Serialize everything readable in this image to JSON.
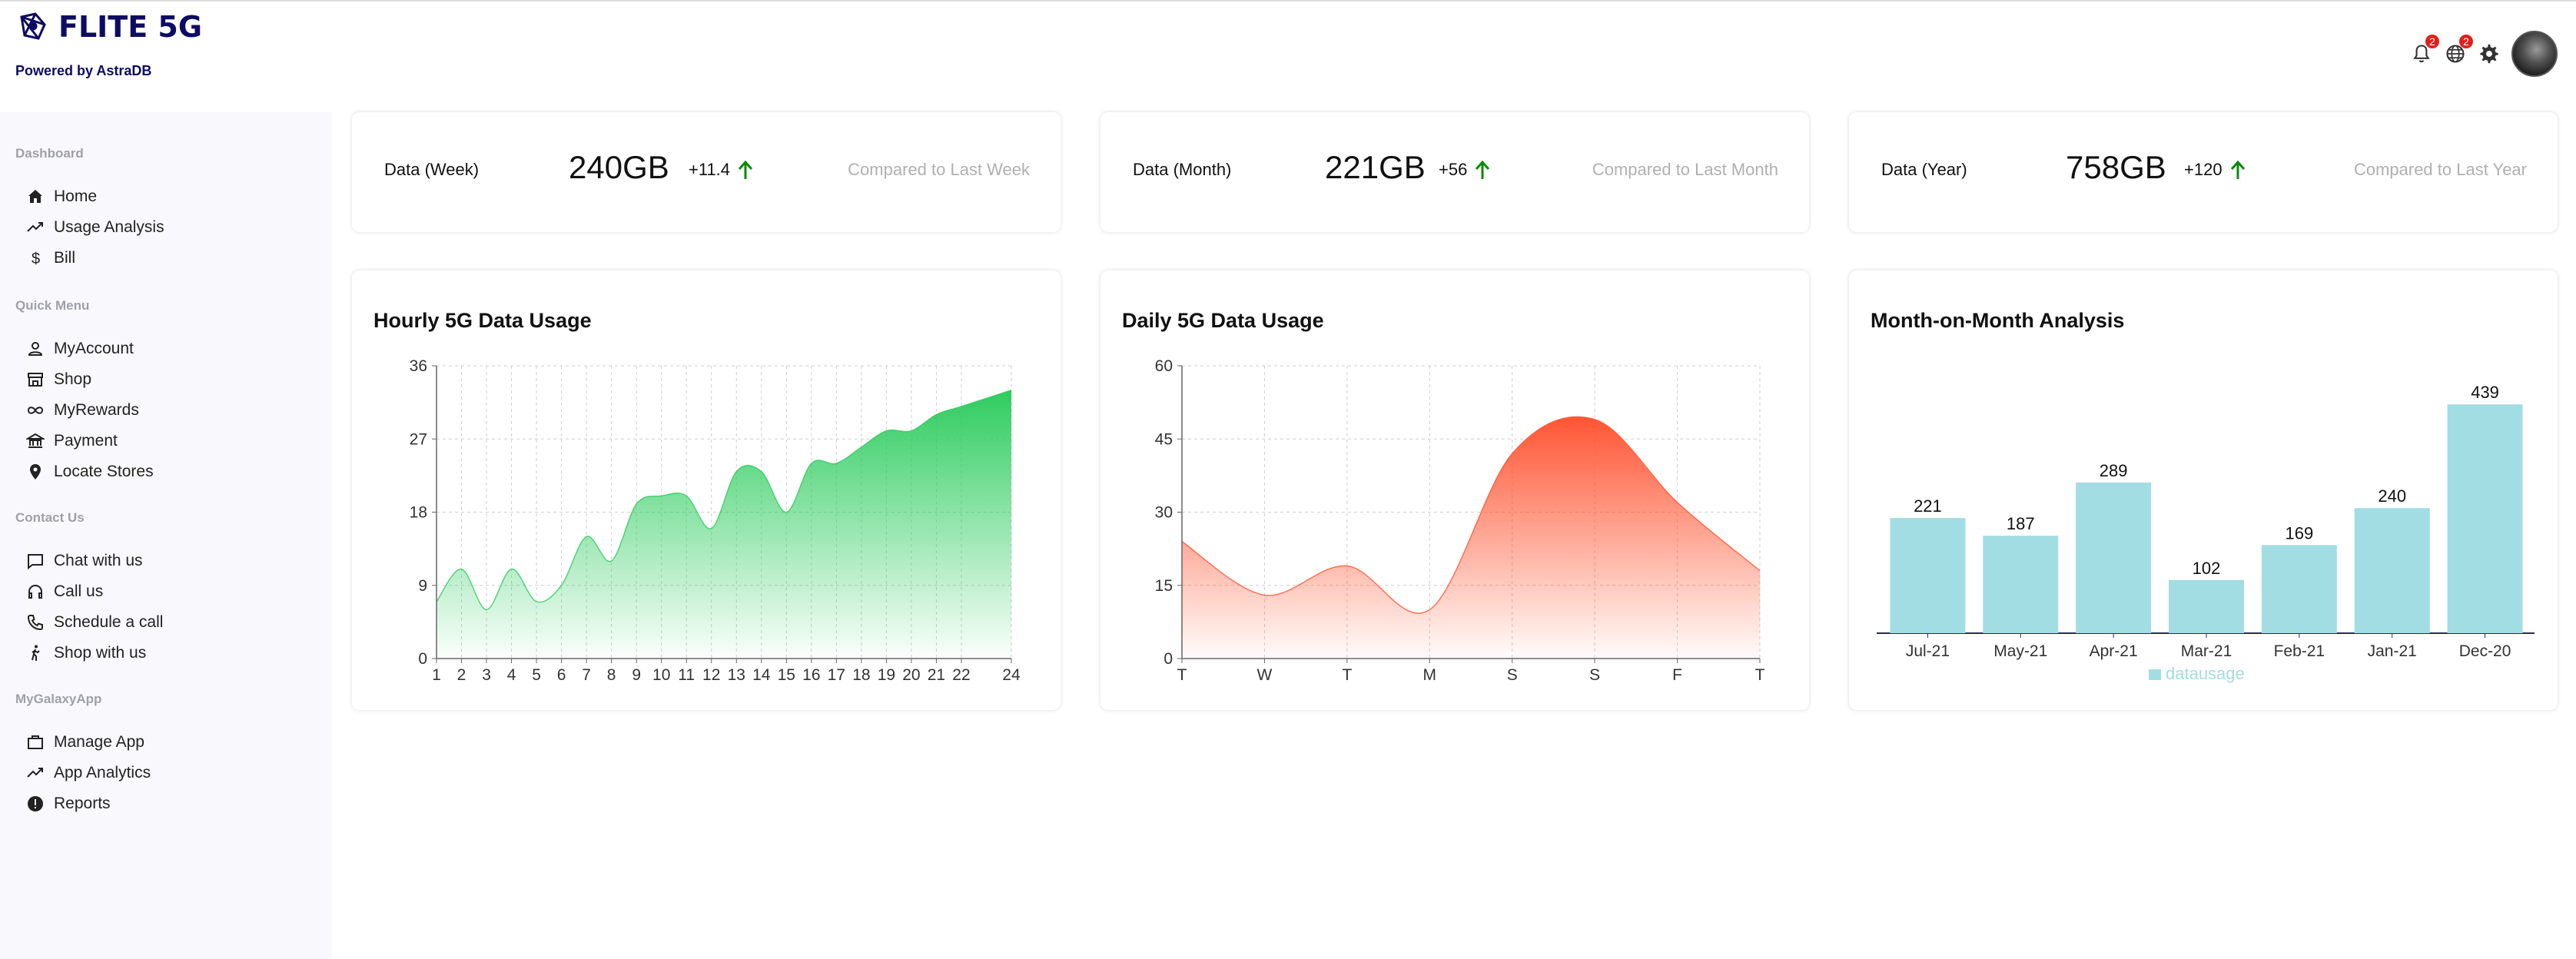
{
  "brand": {
    "title": "FLITE 5G",
    "powered_by": "Powered by AstraDB",
    "color": "#0d0b63"
  },
  "topbar": {
    "notifications_badge": "2",
    "language_badge": "2"
  },
  "sidebar": {
    "sections": [
      {
        "title": "Dashboard",
        "items": [
          {
            "label": "Home",
            "icon": "home-icon"
          },
          {
            "label": "Usage Analysis",
            "icon": "trending-icon"
          },
          {
            "label": "Bill",
            "icon": "dollar-icon"
          }
        ]
      },
      {
        "title": "Quick Menu",
        "items": [
          {
            "label": "MyAccount",
            "icon": "user-icon"
          },
          {
            "label": "Shop",
            "icon": "store-icon"
          },
          {
            "label": "MyRewards",
            "icon": "infinity-icon"
          },
          {
            "label": "Payment",
            "icon": "bank-icon"
          },
          {
            "label": "Locate Stores",
            "icon": "location-icon"
          }
        ]
      },
      {
        "title": "Contact Us",
        "items": [
          {
            "label": "Chat with us",
            "icon": "chat-icon"
          },
          {
            "label": "Call us",
            "icon": "headset-icon"
          },
          {
            "label": "Schedule a call",
            "icon": "phone-icon"
          },
          {
            "label": "Shop with us",
            "icon": "walk-icon"
          }
        ]
      },
      {
        "title": "MyGalaxyApp",
        "items": [
          {
            "label": "Manage App",
            "icon": "bag-icon"
          },
          {
            "label": "App Analytics",
            "icon": "trending-icon"
          },
          {
            "label": "Reports",
            "icon": "alert-circle-icon"
          }
        ]
      }
    ]
  },
  "stats": [
    {
      "label": "Data (Week)",
      "value": "240GB",
      "change": "+11.4",
      "compare": "Compared to Last Week"
    },
    {
      "label": "Data (Month)",
      "value": "221GB",
      "change": "+56",
      "compare": "Compared to Last Month"
    },
    {
      "label": "Data (Year)",
      "value": "758GB",
      "change": "+120",
      "compare": "Compared to Last Year"
    }
  ],
  "colors": {
    "up_arrow": "#0a8a0a",
    "green": "#2ecc5e",
    "red": "#ff5533",
    "bar": "#a2dde3"
  },
  "chart_data": [
    {
      "type": "area",
      "title": "Hourly 5G Data Usage",
      "x": [
        "1",
        "2",
        "3",
        "4",
        "5",
        "6",
        "7",
        "8",
        "9",
        "10",
        "11",
        "12",
        "13",
        "14",
        "15",
        "16",
        "17",
        "18",
        "19",
        "20",
        "21",
        "22",
        "24"
      ],
      "values": [
        7,
        11,
        6,
        11,
        7,
        9,
        15,
        12,
        19,
        20,
        20,
        16,
        23,
        23,
        18,
        24,
        24,
        26,
        28,
        28,
        30,
        31,
        33
      ],
      "yticks": [
        0,
        9,
        18,
        27,
        36
      ],
      "ylim": [
        0,
        36
      ],
      "color": "#2ecc5e",
      "grid": true
    },
    {
      "type": "area",
      "title": "Daily 5G Data Usage",
      "x": [
        "T",
        "W",
        "T",
        "M",
        "S",
        "S",
        "F",
        "T"
      ],
      "values": [
        24,
        13,
        19,
        10,
        42,
        49,
        32,
        18
      ],
      "yticks": [
        0,
        15,
        30,
        45,
        60
      ],
      "ylim": [
        0,
        60
      ],
      "color": "#ff5533",
      "grid": true
    },
    {
      "type": "bar",
      "title": "Month-on-Month Analysis",
      "categories": [
        "Jul-21",
        "May-21",
        "Apr-21",
        "Mar-21",
        "Feb-21",
        "Jan-21",
        "Dec-20"
      ],
      "values": [
        221,
        187,
        289,
        102,
        169,
        240,
        439
      ],
      "legend": "datausage",
      "legend_position": "bottom",
      "color": "#a2dde3",
      "grid": false
    }
  ]
}
